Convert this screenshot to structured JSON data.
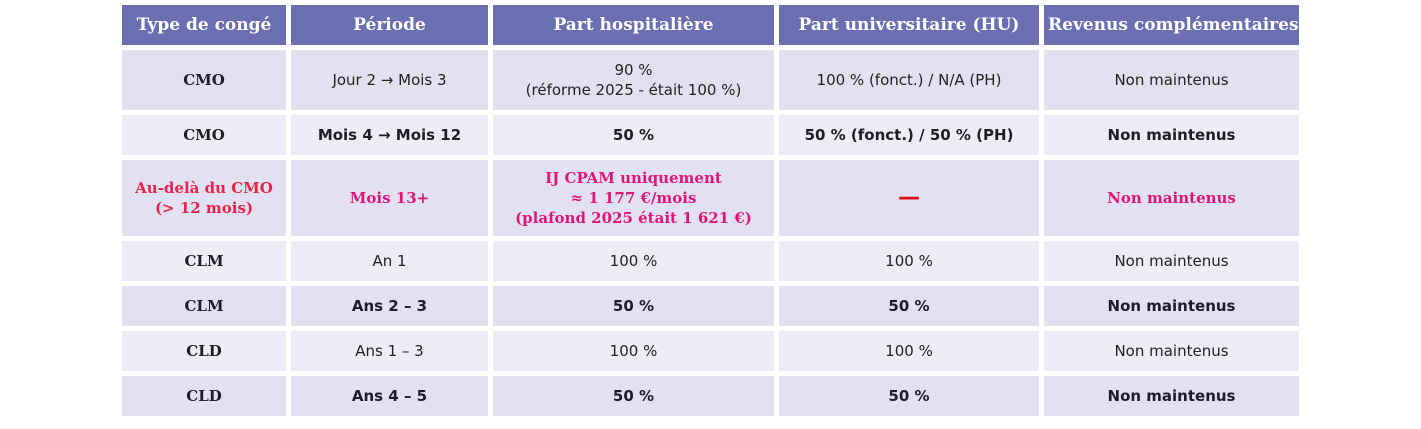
{
  "headers": [
    "Type de congé",
    "Période",
    "Part hospitalière",
    "Part universitaire (HU)",
    "Revenus complémentaires"
  ],
  "rows": [
    {
      "type": "CMO",
      "periode": "Jour 2 → Mois 3",
      "hosp": [
        "90 %",
        "(réforme 2025 - était 100 %)"
      ],
      "hu": "100 % (fonct.) / N/A (PH)",
      "revenus": "Non maintenus"
    },
    {
      "type": "CMO",
      "periode": "Mois 4 → Mois 12",
      "hosp": [
        "50 %"
      ],
      "hu": "50 % (fonct.) / 50 % (PH)",
      "revenus": "Non maintenus"
    },
    {
      "type": [
        "Au-delà du CMO",
        "(> 12 mois)"
      ],
      "periode": "Mois 13+",
      "hosp": [
        "IJ CPAM uniquement",
        "≈ 1 177 €/mois",
        "(plafond 2025 était 1 621 €)"
      ],
      "hu": "—",
      "revenus": "Non maintenus"
    },
    {
      "type": "CLM",
      "periode": "An 1",
      "hosp": [
        "100 %"
      ],
      "hu": "100 %",
      "revenus": "Non maintenus"
    },
    {
      "type": "CLM",
      "periode": "Ans 2 – 3",
      "hosp": [
        "50 %"
      ],
      "hu": "50 %",
      "revenus": "Non maintenus"
    },
    {
      "type": "CLD",
      "periode": "Ans 1 – 3",
      "hosp": [
        "100 %"
      ],
      "hu": "100 %",
      "revenus": "Non maintenus"
    },
    {
      "type": "CLD",
      "periode": "Ans 4 – 5",
      "hosp": [
        "50 %"
      ],
      "hu": "50 %",
      "revenus": "Non maintenus"
    }
  ],
  "colors": {
    "header": "#6b6fb2",
    "row_dark": "#e2e1f1",
    "row_light": "#eeedf7",
    "highlight_pink": "#e0157a",
    "highlight_red": "#e8234b",
    "dash_red": "#d9111f"
  }
}
